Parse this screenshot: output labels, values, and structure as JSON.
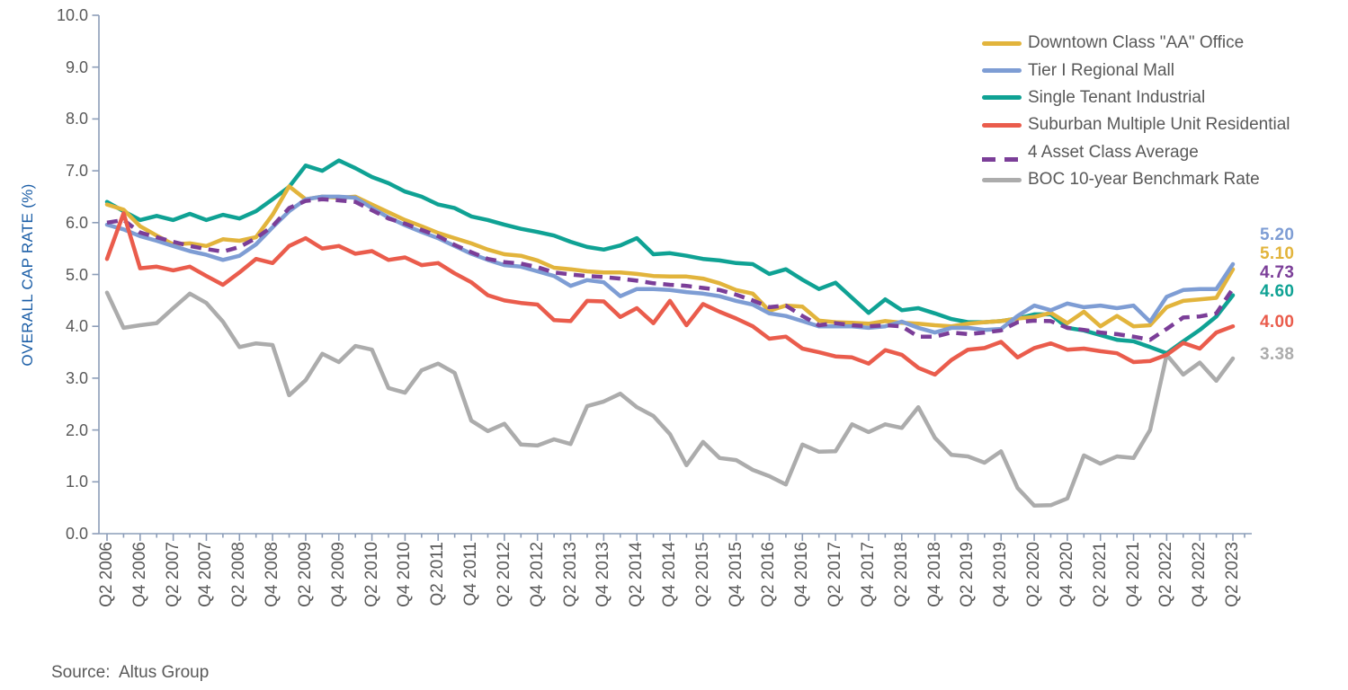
{
  "y_axis": {
    "title": "OVERALL CAP RATE (%)",
    "labels": [
      "10.0",
      "9.0",
      "8.0",
      "7.0",
      "6.0",
      "5.0",
      "4.0",
      "3.0",
      "2.0",
      "1.0",
      "0.0"
    ]
  },
  "source": {
    "label": "Source:  Altus Group"
  },
  "chart_data": {
    "type": "line",
    "title": "",
    "xlabel": "",
    "ylabel": "OVERALL CAP RATE (%)",
    "ylim": [
      0,
      10
    ],
    "y_tick_step": 1.0,
    "grid": false,
    "legend_position": "top-right",
    "x_tick_label_every": 2,
    "x": [
      "Q2 2006",
      "Q3 2006",
      "Q4 2006",
      "Q1 2007",
      "Q2 2007",
      "Q3 2007",
      "Q4 2007",
      "Q1 2008",
      "Q2 2008",
      "Q3 2008",
      "Q4 2008",
      "Q1 2009",
      "Q2 2009",
      "Q3 2009",
      "Q4 2009",
      "Q1 2010",
      "Q2 2010",
      "Q3 2010",
      "Q4 2010",
      "Q1 2011",
      "Q2 2011",
      "Q3 2011",
      "Q4 2011",
      "Q1 2012",
      "Q2 2012",
      "Q3 2012",
      "Q4 2012",
      "Q1 2013",
      "Q2 2013",
      "Q3 2013",
      "Q4 2013",
      "Q1 2014",
      "Q2 2014",
      "Q3 2014",
      "Q4 2014",
      "Q1 2015",
      "Q2 2015",
      "Q3 2015",
      "Q4 2015",
      "Q1 2016",
      "Q2 2016",
      "Q3 2016",
      "Q4 2016",
      "Q1 2017",
      "Q2 2017",
      "Q3 2017",
      "Q4 2017",
      "Q1 2018",
      "Q2 2018",
      "Q3 2018",
      "Q4 2018",
      "Q1 2019",
      "Q2 2019",
      "Q3 2019",
      "Q4 2019",
      "Q1 2020",
      "Q2 2020",
      "Q3 2020",
      "Q4 2020",
      "Q1 2021",
      "Q2 2021",
      "Q3 2021",
      "Q4 2021",
      "Q1 2022",
      "Q2 2022",
      "Q3 2022",
      "Q4 2022",
      "Q1 2023",
      "Q2 2023"
    ],
    "series": [
      {
        "name": "Downtown Class \"AA\" Office",
        "color": "#E2B43C",
        "dashed": false,
        "end_label": "5.10",
        "values": [
          6.35,
          6.25,
          5.93,
          5.75,
          5.58,
          5.6,
          5.55,
          5.68,
          5.65,
          5.72,
          6.15,
          6.7,
          6.45,
          6.5,
          6.48,
          6.5,
          6.35,
          6.2,
          6.05,
          5.93,
          5.8,
          5.7,
          5.6,
          5.48,
          5.39,
          5.36,
          5.27,
          5.13,
          5.1,
          5.06,
          5.04,
          5.04,
          5.01,
          4.97,
          4.96,
          4.96,
          4.92,
          4.83,
          4.7,
          4.63,
          4.3,
          4.4,
          4.38,
          4.11,
          4.08,
          4.07,
          4.05,
          4.1,
          4.07,
          4.05,
          4.02,
          4.0,
          4.05,
          4.08,
          4.1,
          4.15,
          4.18,
          4.26,
          4.06,
          4.28,
          4.0,
          4.2,
          4.0,
          4.02,
          4.37,
          4.49,
          4.52,
          4.55,
          5.1
        ]
      },
      {
        "name": "Tier I Regional Mall",
        "color": "#7E9DD4",
        "dashed": false,
        "end_label": "5.20",
        "values": [
          5.96,
          5.87,
          5.74,
          5.65,
          5.55,
          5.45,
          5.38,
          5.28,
          5.36,
          5.58,
          5.91,
          6.22,
          6.45,
          6.5,
          6.5,
          6.48,
          6.28,
          6.1,
          5.95,
          5.82,
          5.7,
          5.55,
          5.4,
          5.28,
          5.18,
          5.15,
          5.06,
          4.97,
          4.78,
          4.89,
          4.85,
          4.58,
          4.72,
          4.72,
          4.7,
          4.66,
          4.63,
          4.58,
          4.49,
          4.42,
          4.25,
          4.2,
          4.1,
          4.0,
          4.0,
          4.0,
          3.97,
          4.0,
          4.09,
          3.97,
          3.88,
          3.97,
          3.97,
          3.93,
          3.95,
          4.2,
          4.4,
          4.31,
          4.44,
          4.37,
          4.4,
          4.35,
          4.4,
          4.09,
          4.57,
          4.7,
          4.72,
          4.72,
          5.2
        ]
      },
      {
        "name": "Single Tenant Industrial",
        "color": "#0FA294",
        "dashed": false,
        "end_label": "4.60",
        "values": [
          6.4,
          6.22,
          6.05,
          6.13,
          6.05,
          6.17,
          6.05,
          6.15,
          6.08,
          6.22,
          6.45,
          6.69,
          7.1,
          7.0,
          7.2,
          7.05,
          6.88,
          6.76,
          6.6,
          6.5,
          6.35,
          6.28,
          6.12,
          6.05,
          5.96,
          5.88,
          5.82,
          5.75,
          5.63,
          5.53,
          5.48,
          5.56,
          5.7,
          5.39,
          5.41,
          5.36,
          5.3,
          5.27,
          5.22,
          5.2,
          5.01,
          5.1,
          4.9,
          4.72,
          4.84,
          4.55,
          4.26,
          4.52,
          4.31,
          4.35,
          4.25,
          4.14,
          4.08,
          4.08,
          4.1,
          4.15,
          4.23,
          4.23,
          3.97,
          3.92,
          3.83,
          3.74,
          3.71,
          3.6,
          3.48,
          3.71,
          3.93,
          4.19,
          4.6
        ]
      },
      {
        "name": "Suburban Multiple Unit Residential",
        "color": "#EA5C4C",
        "dashed": false,
        "end_label": "4.00",
        "values": [
          5.3,
          6.18,
          5.12,
          5.15,
          5.08,
          5.15,
          4.97,
          4.8,
          5.04,
          5.3,
          5.22,
          5.55,
          5.7,
          5.5,
          5.55,
          5.4,
          5.45,
          5.28,
          5.33,
          5.18,
          5.22,
          5.02,
          4.85,
          4.6,
          4.5,
          4.45,
          4.42,
          4.12,
          4.1,
          4.49,
          4.48,
          4.18,
          4.35,
          4.06,
          4.49,
          4.02,
          4.43,
          4.28,
          4.15,
          4.0,
          3.76,
          3.8,
          3.57,
          3.5,
          3.42,
          3.4,
          3.28,
          3.54,
          3.45,
          3.2,
          3.07,
          3.35,
          3.55,
          3.58,
          3.7,
          3.4,
          3.58,
          3.67,
          3.55,
          3.57,
          3.52,
          3.48,
          3.31,
          3.33,
          3.45,
          3.68,
          3.57,
          3.88,
          4.0
        ]
      },
      {
        "name": "4 Asset Class Average",
        "color": "#7B3E98",
        "dashed": true,
        "end_label": "4.73",
        "values": [
          6.0,
          6.05,
          5.81,
          5.72,
          5.63,
          5.55,
          5.49,
          5.44,
          5.53,
          5.7,
          5.93,
          6.28,
          6.42,
          6.45,
          6.43,
          6.4,
          6.24,
          6.08,
          5.98,
          5.86,
          5.74,
          5.57,
          5.43,
          5.3,
          5.24,
          5.21,
          5.14,
          5.04,
          5.0,
          4.97,
          4.95,
          4.92,
          4.88,
          4.83,
          4.8,
          4.78,
          4.74,
          4.7,
          4.61,
          4.5,
          4.37,
          4.4,
          4.2,
          4.02,
          4.06,
          4.02,
          4.0,
          4.02,
          4.0,
          3.8,
          3.8,
          3.88,
          3.85,
          3.88,
          3.92,
          4.08,
          4.11,
          4.1,
          3.97,
          3.93,
          3.88,
          3.85,
          3.8,
          3.74,
          3.95,
          4.17,
          4.19,
          4.25,
          4.73
        ]
      },
      {
        "name": "BOC 10-year Benchmark Rate",
        "color": "#ACACAC",
        "dashed": false,
        "end_label": "3.38",
        "values": [
          4.65,
          3.97,
          4.02,
          4.06,
          4.35,
          4.63,
          4.45,
          4.09,
          3.6,
          3.67,
          3.64,
          2.67,
          2.96,
          3.47,
          3.31,
          3.62,
          3.55,
          2.81,
          2.72,
          3.15,
          3.28,
          3.1,
          2.18,
          1.98,
          2.12,
          1.72,
          1.7,
          1.82,
          1.73,
          2.46,
          2.55,
          2.7,
          2.44,
          2.27,
          1.92,
          1.32,
          1.77,
          1.46,
          1.42,
          1.23,
          1.11,
          0.95,
          1.72,
          1.58,
          1.59,
          2.11,
          1.96,
          2.11,
          2.04,
          2.44,
          1.85,
          1.52,
          1.49,
          1.37,
          1.59,
          0.88,
          0.54,
          0.55,
          0.68,
          1.51,
          1.35,
          1.49,
          1.46,
          2.0,
          3.45,
          3.07,
          3.3,
          2.95,
          3.38
        ]
      }
    ]
  }
}
